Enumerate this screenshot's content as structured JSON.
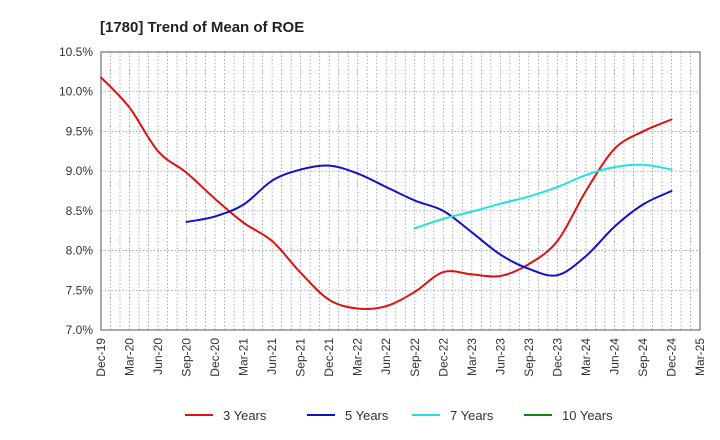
{
  "chart_data": {
    "type": "line",
    "title": "[1780]  Trend of Mean of ROE",
    "xlabel": "",
    "ylabel": "",
    "categories": [
      "Dec-19",
      "Mar-20",
      "Jun-20",
      "Sep-20",
      "Dec-20",
      "Mar-21",
      "Jun-21",
      "Sep-21",
      "Dec-21",
      "Mar-22",
      "Jun-22",
      "Sep-22",
      "Dec-22",
      "Mar-23",
      "Jun-23",
      "Sep-23",
      "Dec-23",
      "Mar-24",
      "Jun-24",
      "Sep-24",
      "Dec-24",
      "Mar-25"
    ],
    "y_ticks": [
      "7.0%",
      "7.5%",
      "8.0%",
      "8.5%",
      "9.0%",
      "9.5%",
      "10.0%",
      "10.5%"
    ],
    "ylim": [
      7.0,
      10.5
    ],
    "grid": true,
    "legend_position": "bottom",
    "series": [
      {
        "name": "3 Years",
        "color": "#dd1111",
        "values": [
          10.18,
          9.8,
          9.25,
          8.98,
          8.65,
          8.35,
          8.12,
          7.72,
          7.38,
          7.27,
          7.3,
          7.48,
          7.73,
          7.7,
          7.68,
          7.83,
          8.12,
          8.75,
          9.28,
          9.5,
          9.65,
          null
        ]
      },
      {
        "name": "5 Years",
        "color": "#1111cc",
        "values": [
          null,
          null,
          null,
          8.36,
          8.43,
          8.58,
          8.88,
          9.02,
          9.07,
          8.97,
          8.8,
          8.63,
          8.5,
          8.23,
          7.95,
          7.77,
          7.69,
          7.93,
          8.3,
          8.58,
          8.75,
          null
        ]
      },
      {
        "name": "7 Years",
        "color": "#22e0e0",
        "values": [
          null,
          null,
          null,
          null,
          null,
          null,
          null,
          null,
          null,
          null,
          null,
          8.28,
          8.4,
          8.49,
          8.59,
          8.68,
          8.8,
          8.95,
          9.05,
          9.08,
          9.02,
          null
        ]
      },
      {
        "name": "10 Years",
        "color": "#118811",
        "values": [
          null,
          null,
          null,
          null,
          null,
          null,
          null,
          null,
          null,
          null,
          null,
          null,
          null,
          null,
          null,
          null,
          null,
          null,
          null,
          null,
          null,
          null
        ]
      }
    ]
  }
}
